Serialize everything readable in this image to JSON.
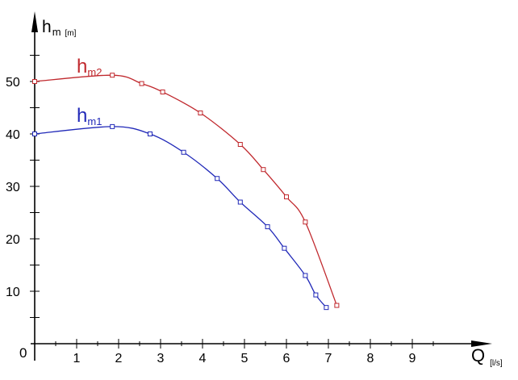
{
  "chart_data": {
    "type": "line",
    "y_axis": {
      "symbol": "h",
      "subscript": "m",
      "unit": "[m]",
      "ticks": [
        10,
        20,
        30,
        40,
        50
      ],
      "range": [
        0,
        58
      ]
    },
    "x_axis": {
      "symbol": "Q",
      "unit": "[l/s]",
      "ticks": [
        1,
        2,
        3,
        4,
        5,
        6,
        7,
        8,
        9
      ],
      "range": [
        0,
        10.5
      ]
    },
    "origin_label": "0",
    "grid": false,
    "legend": "inline labels",
    "series": [
      {
        "name": "hm2",
        "label_main": "h",
        "label_sub": "m2",
        "color": "#c0282d",
        "points": [
          [
            0,
            50
          ],
          [
            1.85,
            51.2
          ],
          [
            2.55,
            49.6
          ],
          [
            3.05,
            48
          ],
          [
            3.95,
            44
          ],
          [
            4.9,
            38
          ],
          [
            5.45,
            33.2
          ],
          [
            6.0,
            28
          ],
          [
            6.45,
            23.2
          ],
          [
            7.2,
            7.3
          ]
        ]
      },
      {
        "name": "hm1",
        "label_main": "h",
        "label_sub": "m1",
        "color": "#2028b8",
        "points": [
          [
            0,
            40
          ],
          [
            1.85,
            41.4
          ],
          [
            2.75,
            40
          ],
          [
            3.55,
            36.5
          ],
          [
            4.35,
            31.5
          ],
          [
            4.9,
            27
          ],
          [
            5.55,
            22.3
          ],
          [
            5.95,
            18.2
          ],
          [
            6.45,
            13
          ],
          [
            6.7,
            9.3
          ],
          [
            6.95,
            6.9
          ]
        ]
      }
    ]
  }
}
